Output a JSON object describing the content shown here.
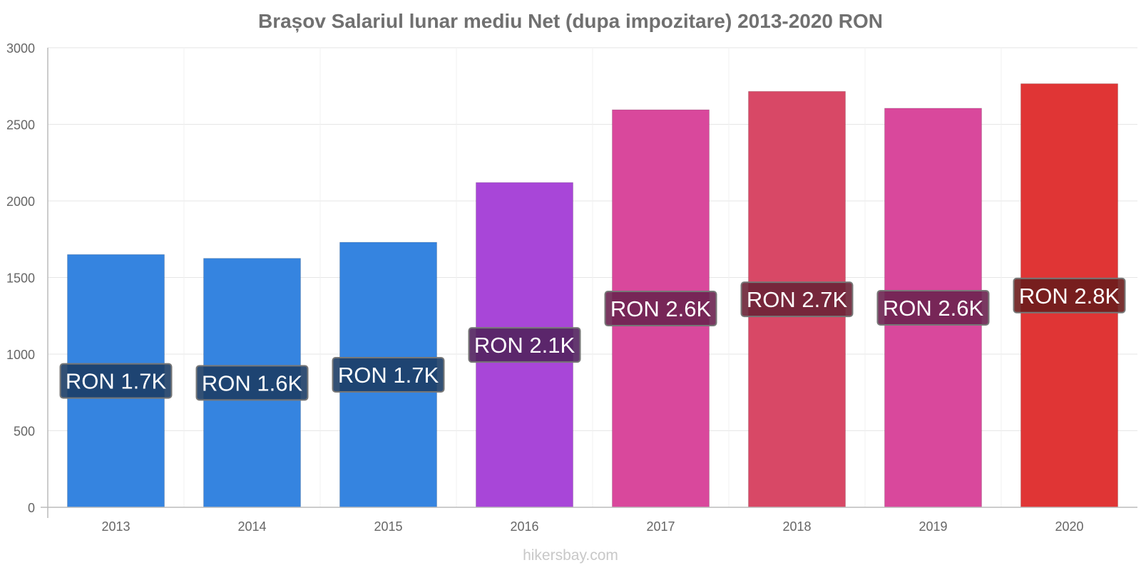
{
  "chart_data": {
    "type": "bar",
    "title": "Brașov Salariul lunar mediu Net (dupa impozitare) 2013-2020 RON",
    "categories": [
      "2013",
      "2014",
      "2015",
      "2016",
      "2017",
      "2018",
      "2019",
      "2020"
    ],
    "values": [
      1650,
      1625,
      1730,
      2120,
      2595,
      2715,
      2605,
      2765
    ],
    "data_labels": [
      "RON 1.7K",
      "RON 1.6K",
      "RON 1.7K",
      "RON 2.1K",
      "RON 2.6K",
      "RON 2.7K",
      "RON 2.6K",
      "RON 2.8K"
    ],
    "bar_colors": [
      "#3584e0",
      "#3584e0",
      "#3584e0",
      "#a846d8",
      "#d9489c",
      "#d84866",
      "#d9489c",
      "#e03535"
    ],
    "label_bg_colors": [
      "#1c3d66",
      "#1c3d66",
      "#1c3d66",
      "#52225f",
      "#6c2250",
      "#6c2236",
      "#6c2250",
      "#6c1c1c"
    ],
    "ylim": [
      0,
      3000
    ],
    "yticks": [
      0,
      500,
      1000,
      1500,
      2000,
      2500,
      3000
    ],
    "xlabel": "",
    "ylabel": "",
    "grid": true,
    "legend": "none"
  },
  "watermark": "hikersbay.com"
}
